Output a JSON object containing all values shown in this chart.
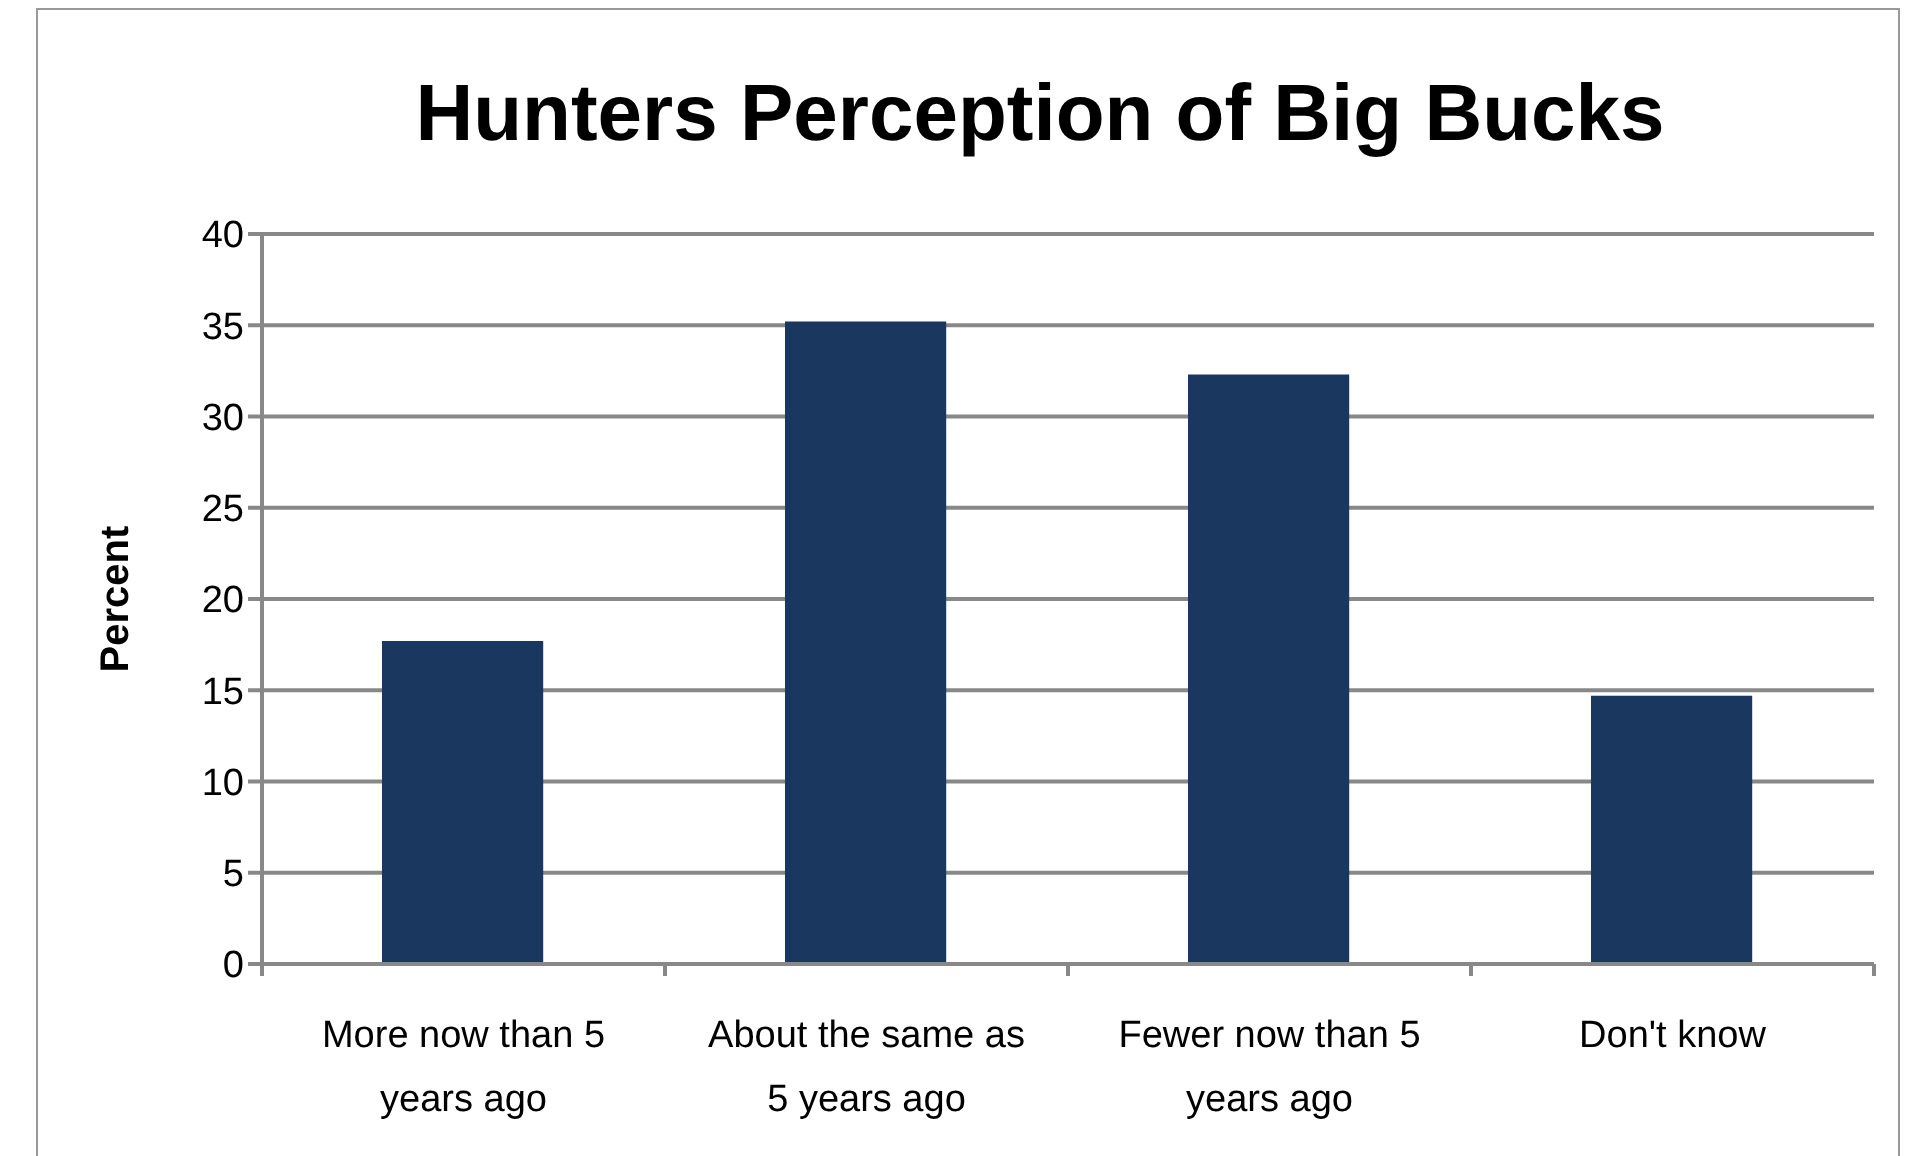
{
  "chart_data": {
    "type": "bar",
    "title": "Hunters Perception of Big Bucks",
    "ylabel": "Percent",
    "categories": [
      "More now than 5 years ago",
      "About the same as 5 years ago",
      "Fewer now than 5 years ago",
      "Don't know"
    ],
    "values": [
      17.7,
      35.2,
      32.3,
      14.7
    ],
    "color": "#1a375f",
    "ylim": [
      0,
      40
    ],
    "yticks": [
      0,
      5,
      10,
      15,
      20,
      25,
      30,
      35,
      40
    ],
    "grid": "y"
  }
}
